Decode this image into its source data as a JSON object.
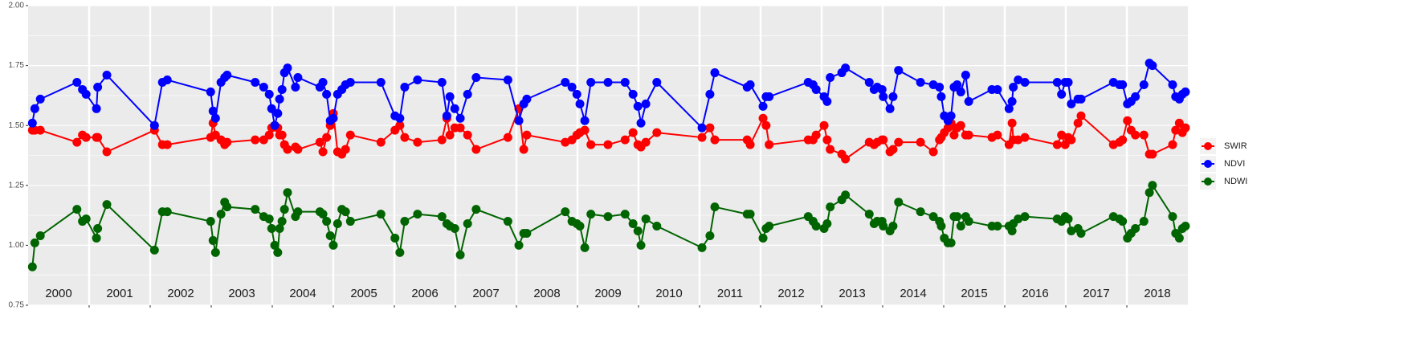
{
  "chart_data": {
    "type": "line",
    "x": [
      2000.07,
      2000.11,
      2000.2,
      2000.8,
      2000.89,
      2000.95,
      2001.12,
      2001.14,
      2001.29,
      2002.07,
      2002.2,
      2002.28,
      2002.99,
      2003.03,
      2003.07,
      2003.16,
      2003.22,
      2003.26,
      2003.72,
      2003.86,
      2003.95,
      2003.99,
      2004.04,
      2004.09,
      2004.12,
      2004.16,
      2004.2,
      2004.25,
      2004.38,
      2004.42,
      2004.78,
      2004.83,
      2004.89,
      2004.95,
      2005.0,
      2005.07,
      2005.14,
      2005.2,
      2005.28,
      2005.78,
      2006.01,
      2006.09,
      2006.17,
      2006.38,
      2006.78,
      2006.86,
      2006.91,
      2006.99,
      2007.08,
      2007.2,
      2007.34,
      2007.86,
      2008.04,
      2008.12,
      2008.17,
      2008.8,
      2008.91,
      2008.99,
      2009.04,
      2009.12,
      2009.22,
      2009.5,
      2009.78,
      2009.91,
      2009.99,
      2010.04,
      2010.12,
      2010.3,
      2011.04,
      2011.17,
      2011.25,
      2011.78,
      2011.83,
      2012.04,
      2012.09,
      2012.14,
      2012.78,
      2012.86,
      2012.91,
      2013.04,
      2013.09,
      2013.14,
      2013.33,
      2013.39,
      2013.78,
      2013.86,
      2013.91,
      2013.99,
      2014.01,
      2014.12,
      2014.17,
      2014.26,
      2014.62,
      2014.83,
      2014.93,
      2014.96,
      2015.01,
      2015.07,
      2015.12,
      2015.17,
      2015.22,
      2015.28,
      2015.36,
      2015.41,
      2015.79,
      2015.88,
      2016.07,
      2016.12,
      2016.14,
      2016.22,
      2016.33,
      2016.86,
      2016.93,
      2016.99,
      2017.04,
      2017.09,
      2017.2,
      2017.25,
      2017.78,
      2017.88,
      2017.93,
      2018.01,
      2018.07,
      2018.14,
      2018.28,
      2018.37,
      2018.42,
      2018.75,
      2018.8,
      2018.86,
      2018.91,
      2018.96
    ],
    "series": [
      {
        "name": "SWIR",
        "color": "#ff0000",
        "values": [
          1.48,
          1.48,
          1.48,
          1.43,
          1.46,
          1.45,
          1.45,
          1.45,
          1.39,
          1.48,
          1.42,
          1.42,
          1.45,
          1.51,
          1.46,
          1.44,
          1.42,
          1.43,
          1.44,
          1.44,
          1.46,
          1.49,
          1.5,
          1.49,
          1.46,
          1.46,
          1.42,
          1.4,
          1.41,
          1.4,
          1.43,
          1.39,
          1.45,
          1.5,
          1.55,
          1.39,
          1.38,
          1.4,
          1.46,
          1.43,
          1.48,
          1.5,
          1.45,
          1.43,
          1.44,
          1.53,
          1.46,
          1.49,
          1.49,
          1.46,
          1.4,
          1.45,
          1.57,
          1.4,
          1.46,
          1.43,
          1.44,
          1.46,
          1.47,
          1.48,
          1.42,
          1.42,
          1.44,
          1.47,
          1.42,
          1.41,
          1.43,
          1.47,
          1.45,
          1.49,
          1.44,
          1.44,
          1.42,
          1.53,
          1.5,
          1.42,
          1.44,
          1.44,
          1.46,
          1.5,
          1.44,
          1.4,
          1.38,
          1.36,
          1.43,
          1.42,
          1.43,
          1.44,
          1.44,
          1.39,
          1.4,
          1.43,
          1.43,
          1.39,
          1.44,
          1.45,
          1.47,
          1.49,
          1.51,
          1.46,
          1.49,
          1.5,
          1.46,
          1.46,
          1.45,
          1.46,
          1.42,
          1.51,
          1.44,
          1.44,
          1.45,
          1.42,
          1.46,
          1.42,
          1.45,
          1.44,
          1.51,
          1.54,
          1.42,
          1.43,
          1.44,
          1.52,
          1.48,
          1.46,
          1.46,
          1.38,
          1.38,
          1.42,
          1.48,
          1.51,
          1.47,
          1.49
        ]
      },
      {
        "name": "NDVI",
        "color": "#0000ff",
        "values": [
          1.51,
          1.57,
          1.61,
          1.68,
          1.65,
          1.63,
          1.57,
          1.66,
          1.71,
          1.5,
          1.68,
          1.69,
          1.64,
          1.56,
          1.53,
          1.68,
          1.7,
          1.71,
          1.68,
          1.66,
          1.63,
          1.57,
          1.5,
          1.55,
          1.61,
          1.65,
          1.72,
          1.74,
          1.66,
          1.7,
          1.66,
          1.68,
          1.63,
          1.52,
          1.53,
          1.63,
          1.65,
          1.67,
          1.68,
          1.68,
          1.54,
          1.53,
          1.66,
          1.69,
          1.68,
          1.54,
          1.62,
          1.57,
          1.53,
          1.63,
          1.7,
          1.69,
          1.52,
          1.59,
          1.61,
          1.68,
          1.66,
          1.63,
          1.59,
          1.52,
          1.68,
          1.68,
          1.68,
          1.63,
          1.58,
          1.51,
          1.59,
          1.68,
          1.49,
          1.63,
          1.72,
          1.66,
          1.67,
          1.58,
          1.62,
          1.62,
          1.68,
          1.67,
          1.65,
          1.62,
          1.6,
          1.7,
          1.72,
          1.74,
          1.68,
          1.65,
          1.66,
          1.65,
          1.62,
          1.57,
          1.62,
          1.73,
          1.68,
          1.67,
          1.66,
          1.62,
          1.54,
          1.52,
          1.54,
          1.66,
          1.67,
          1.64,
          1.71,
          1.6,
          1.65,
          1.65,
          1.57,
          1.6,
          1.66,
          1.69,
          1.68,
          1.68,
          1.63,
          1.68,
          1.68,
          1.59,
          1.61,
          1.61,
          1.68,
          1.67,
          1.67,
          1.59,
          1.6,
          1.62,
          1.67,
          1.76,
          1.75,
          1.67,
          1.62,
          1.61,
          1.63,
          1.64
        ]
      },
      {
        "name": "NDWI",
        "color": "#006400",
        "values": [
          0.91,
          1.01,
          1.04,
          1.15,
          1.1,
          1.11,
          1.03,
          1.07,
          1.17,
          0.98,
          1.14,
          1.14,
          1.1,
          1.02,
          0.97,
          1.13,
          1.18,
          1.16,
          1.15,
          1.12,
          1.11,
          1.07,
          1.0,
          0.97,
          1.07,
          1.1,
          1.15,
          1.22,
          1.12,
          1.14,
          1.14,
          1.13,
          1.1,
          1.04,
          1.0,
          1.09,
          1.15,
          1.14,
          1.1,
          1.13,
          1.03,
          0.97,
          1.1,
          1.13,
          1.12,
          1.09,
          1.08,
          1.07,
          0.96,
          1.09,
          1.15,
          1.1,
          1.0,
          1.05,
          1.05,
          1.14,
          1.1,
          1.09,
          1.08,
          0.99,
          1.13,
          1.12,
          1.13,
          1.09,
          1.06,
          1.0,
          1.11,
          1.08,
          0.99,
          1.04,
          1.16,
          1.13,
          1.13,
          1.03,
          1.07,
          1.08,
          1.12,
          1.1,
          1.08,
          1.07,
          1.09,
          1.16,
          1.19,
          1.21,
          1.13,
          1.09,
          1.1,
          1.1,
          1.08,
          1.06,
          1.08,
          1.18,
          1.14,
          1.12,
          1.1,
          1.08,
          1.03,
          1.01,
          1.01,
          1.12,
          1.12,
          1.08,
          1.12,
          1.1,
          1.08,
          1.08,
          1.08,
          1.06,
          1.09,
          1.11,
          1.12,
          1.11,
          1.1,
          1.12,
          1.11,
          1.06,
          1.07,
          1.05,
          1.12,
          1.11,
          1.1,
          1.03,
          1.05,
          1.07,
          1.1,
          1.22,
          1.25,
          1.12,
          1.05,
          1.03,
          1.07,
          1.08
        ]
      }
    ],
    "year_labels": [
      "2000",
      "2001",
      "2002",
      "2003",
      "2004",
      "2005",
      "2006",
      "2007",
      "2008",
      "2009",
      "2010",
      "2011",
      "2012",
      "2013",
      "2014",
      "2015",
      "2016",
      "2017",
      "2018"
    ],
    "xlim": [
      2000,
      2019
    ],
    "xticks": [
      2001,
      2002,
      2003,
      2004,
      2005,
      2006,
      2007,
      2008,
      2009,
      2010,
      2011,
      2012,
      2013,
      2014,
      2015,
      2016,
      2017,
      2018
    ],
    "ylim": [
      0.75,
      2.0
    ],
    "yticks": [
      {
        "value": 0.75,
        "label": "0.75"
      },
      {
        "value": 1.0,
        "label": "1.00"
      },
      {
        "value": 1.25,
        "label": "1.25"
      },
      {
        "value": 1.5,
        "label": "1.50"
      },
      {
        "value": 1.75,
        "label": "1.75"
      },
      {
        "value": 2.0,
        "label": "2.00"
      }
    ],
    "grid": true,
    "legend": "right"
  }
}
